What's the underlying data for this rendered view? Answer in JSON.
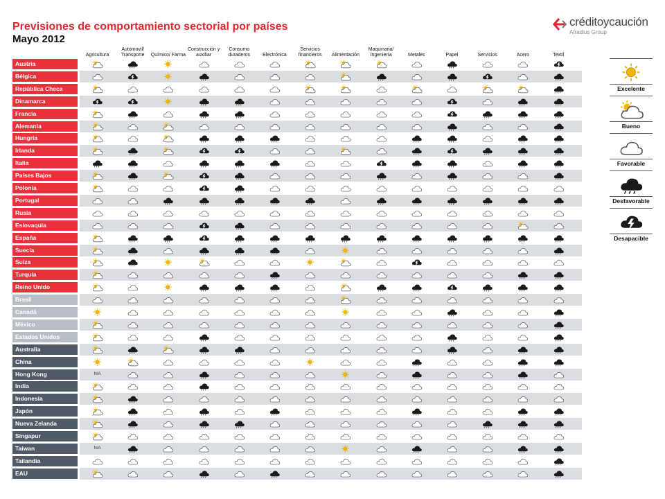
{
  "header": {
    "title": "Previsiones de comportamiento sectorial por países",
    "subtitle": "Mayo 2012",
    "brand": "créditoycaución",
    "brand_sub": "Atradius Group"
  },
  "colors": {
    "europe_label": "#e8313b",
    "americas_label": "#b8bec6",
    "asia_label": "#4f5a66",
    "row_stripe": "#dadde1",
    "excelente": "#f2b705"
  },
  "legend": [
    {
      "key": "E",
      "label": "Excelente",
      "icon": "sun-icon"
    },
    {
      "key": "B",
      "label": "Bueno",
      "icon": "sun-cloud-icon"
    },
    {
      "key": "F",
      "label": "Favorable",
      "icon": "cloud-icon"
    },
    {
      "key": "D",
      "label": "Desfavorable",
      "icon": "dark-cloud-icon"
    },
    {
      "key": "X",
      "label": "Desapacible",
      "icon": "storm-cloud-icon"
    }
  ],
  "chart_data": {
    "type": "table",
    "title": "Previsiones de comportamiento sectorial por países",
    "subtitle": "Mayo 2012",
    "columns": [
      "Agricultura",
      "Automovil/ Transporte",
      "Químico/ Farma",
      "Construcción y auxiliar",
      "Consumo duraderos",
      "Electrónica",
      "Servicios financieros",
      "Alimentación",
      "Maquinaria/ Ingeniería",
      "Metales",
      "Papel",
      "Servicios",
      "Acero",
      "Textil"
    ],
    "rows": [
      {
        "country": "Austria",
        "group": "europe",
        "ratings": [
          "B",
          "D",
          "E",
          "F",
          "F",
          "F",
          "B",
          "B",
          "B",
          "F",
          "D",
          "F",
          "F",
          "X"
        ]
      },
      {
        "country": "Bélgica",
        "group": "europe",
        "ratings": [
          "F",
          "X",
          "E",
          "D",
          "F",
          "F",
          "F",
          "B",
          "D",
          "F",
          "D",
          "X",
          "F",
          "D"
        ]
      },
      {
        "country": "República Checa",
        "group": "europe",
        "ratings": [
          "B",
          "F",
          "F",
          "F",
          "F",
          "F",
          "B",
          "B",
          "F",
          "B",
          "F",
          "B",
          "B",
          "D"
        ]
      },
      {
        "country": "Dinamarca",
        "group": "europe",
        "ratings": [
          "X",
          "X",
          "E",
          "D",
          "D",
          "F",
          "F",
          "F",
          "F",
          "F",
          "X",
          "F",
          "D",
          "D"
        ]
      },
      {
        "country": "Francia",
        "group": "europe",
        "ratings": [
          "B",
          "D",
          "F",
          "D",
          "D",
          "F",
          "F",
          "F",
          "F",
          "F",
          "X",
          "D",
          "D",
          "D"
        ]
      },
      {
        "country": "Alemania",
        "group": "europe",
        "ratings": [
          "B",
          "F",
          "B",
          "F",
          "F",
          "F",
          "F",
          "F",
          "F",
          "F",
          "D",
          "F",
          "F",
          "D"
        ]
      },
      {
        "country": "Hungría",
        "group": "europe",
        "ratings": [
          "B",
          "F",
          "B",
          "D",
          "D",
          "D",
          "F",
          "F",
          "F",
          "D",
          "D",
          "F",
          "D",
          "D"
        ]
      },
      {
        "country": "Irlanda",
        "group": "europe",
        "ratings": [
          "B",
          "D",
          "B",
          "X",
          "X",
          "F",
          "F",
          "B",
          "F",
          "D",
          "X",
          "D",
          "D",
          "D"
        ]
      },
      {
        "country": "Italia",
        "group": "europe",
        "ratings": [
          "D",
          "D",
          "F",
          "D",
          "D",
          "D",
          "F",
          "F",
          "X",
          "D",
          "D",
          "F",
          "D",
          "D"
        ]
      },
      {
        "country": "Países Bajos",
        "group": "europe",
        "ratings": [
          "B",
          "D",
          "B",
          "X",
          "D",
          "F",
          "F",
          "F",
          "D",
          "F",
          "D",
          "F",
          "F",
          "D"
        ]
      },
      {
        "country": "Polonia",
        "group": "europe",
        "ratings": [
          "B",
          "F",
          "F",
          "X",
          "D",
          "F",
          "F",
          "F",
          "F",
          "F",
          "F",
          "F",
          "F",
          "F"
        ]
      },
      {
        "country": "Portugal",
        "group": "europe",
        "ratings": [
          "F",
          "F",
          "D",
          "D",
          "D",
          "D",
          "D",
          "F",
          "D",
          "D",
          "D",
          "D",
          "D",
          "D"
        ]
      },
      {
        "country": "Rusia",
        "group": "europe",
        "ratings": [
          "F",
          "F",
          "F",
          "F",
          "F",
          "F",
          "F",
          "F",
          "F",
          "F",
          "F",
          "F",
          "F",
          "F"
        ]
      },
      {
        "country": "Eslovaquia",
        "group": "europe",
        "ratings": [
          "F",
          "F",
          "F",
          "X",
          "D",
          "F",
          "F",
          "F",
          "F",
          "F",
          "F",
          "F",
          "B",
          "F"
        ]
      },
      {
        "country": "España",
        "group": "europe",
        "ratings": [
          "B",
          "D",
          "D",
          "X",
          "D",
          "D",
          "D",
          "D",
          "D",
          "D",
          "D",
          "D",
          "D",
          "D"
        ]
      },
      {
        "country": "Suecia",
        "group": "europe",
        "ratings": [
          "B",
          "D",
          "F",
          "D",
          "D",
          "D",
          "F",
          "E",
          "F",
          "F",
          "F",
          "F",
          "F",
          "D"
        ]
      },
      {
        "country": "Suiza",
        "group": "europe",
        "ratings": [
          "B",
          "D",
          "E",
          "B",
          "F",
          "F",
          "E",
          "B",
          "F",
          "X",
          "F",
          "F",
          "F",
          "F"
        ]
      },
      {
        "country": "Turquía",
        "group": "europe",
        "ratings": [
          "B",
          "F",
          "F",
          "F",
          "F",
          "D",
          "F",
          "F",
          "F",
          "F",
          "F",
          "F",
          "D",
          "D"
        ]
      },
      {
        "country": "Reino Unido",
        "group": "europe",
        "ratings": [
          "B",
          "F",
          "E",
          "D",
          "D",
          "D",
          "F",
          "B",
          "D",
          "D",
          "X",
          "D",
          "D",
          "D"
        ]
      },
      {
        "country": "Brasil",
        "group": "americas",
        "ratings": [
          "F",
          "F",
          "F",
          "F",
          "F",
          "F",
          "F",
          "B",
          "F",
          "F",
          "F",
          "F",
          "F",
          "F"
        ]
      },
      {
        "country": "Canadá",
        "group": "americas",
        "ratings": [
          "E",
          "F",
          "F",
          "F",
          "F",
          "F",
          "F",
          "E",
          "F",
          "F",
          "D",
          "F",
          "F",
          "D"
        ]
      },
      {
        "country": "México",
        "group": "americas",
        "ratings": [
          "B",
          "F",
          "F",
          "F",
          "F",
          "F",
          "F",
          "F",
          "F",
          "F",
          "F",
          "F",
          "F",
          "D"
        ]
      },
      {
        "country": "Estados Unidos",
        "group": "americas",
        "ratings": [
          "B",
          "F",
          "F",
          "D",
          "F",
          "F",
          "F",
          "F",
          "F",
          "F",
          "D",
          "F",
          "F",
          "D"
        ]
      },
      {
        "country": "Australia",
        "group": "asia",
        "ratings": [
          "B",
          "D",
          "B",
          "D",
          "D",
          "F",
          "F",
          "F",
          "F",
          "F",
          "D",
          "F",
          "D",
          "D"
        ]
      },
      {
        "country": "China",
        "group": "asia",
        "ratings": [
          "E",
          "B",
          "F",
          "F",
          "F",
          "F",
          "E",
          "F",
          "F",
          "D",
          "F",
          "F",
          "D",
          "D"
        ]
      },
      {
        "country": "Hong Kong",
        "group": "asia",
        "ratings": [
          "N/A",
          "F",
          "F",
          "D",
          "F",
          "F",
          "F",
          "E",
          "F",
          "D",
          "F",
          "F",
          "D",
          "F"
        ]
      },
      {
        "country": "India",
        "group": "asia",
        "ratings": [
          "B",
          "F",
          "F",
          "D",
          "F",
          "F",
          "F",
          "F",
          "F",
          "F",
          "F",
          "F",
          "F",
          "F"
        ]
      },
      {
        "country": "Indonesia",
        "group": "asia",
        "ratings": [
          "B",
          "D",
          "F",
          "F",
          "F",
          "F",
          "F",
          "F",
          "F",
          "F",
          "F",
          "F",
          "F",
          "F"
        ]
      },
      {
        "country": "Japón",
        "group": "asia",
        "ratings": [
          "B",
          "D",
          "F",
          "D",
          "F",
          "D",
          "F",
          "F",
          "F",
          "D",
          "F",
          "F",
          "D",
          "D"
        ]
      },
      {
        "country": "Nueva Zelanda",
        "group": "asia",
        "ratings": [
          "B",
          "D",
          "F",
          "D",
          "D",
          "F",
          "F",
          "F",
          "F",
          "F",
          "F",
          "D",
          "D",
          "D"
        ]
      },
      {
        "country": "Singapur",
        "group": "asia",
        "ratings": [
          "B",
          "F",
          "F",
          "F",
          "F",
          "F",
          "F",
          "F",
          "F",
          "F",
          "F",
          "F",
          "F",
          "F"
        ]
      },
      {
        "country": "Taiwan",
        "group": "asia",
        "ratings": [
          "N/A",
          "D",
          "F",
          "F",
          "F",
          "F",
          "F",
          "E",
          "F",
          "D",
          "F",
          "F",
          "D",
          "D"
        ]
      },
      {
        "country": "Tailandia",
        "group": "asia",
        "ratings": [
          "F",
          "F",
          "F",
          "F",
          "F",
          "F",
          "F",
          "F",
          "F",
          "F",
          "F",
          "F",
          "F",
          "D"
        ]
      },
      {
        "country": "EAU",
        "group": "asia",
        "ratings": [
          "B",
          "F",
          "F",
          "D",
          "F",
          "D",
          "F",
          "F",
          "F",
          "F",
          "F",
          "F",
          "F",
          "D"
        ]
      }
    ]
  }
}
